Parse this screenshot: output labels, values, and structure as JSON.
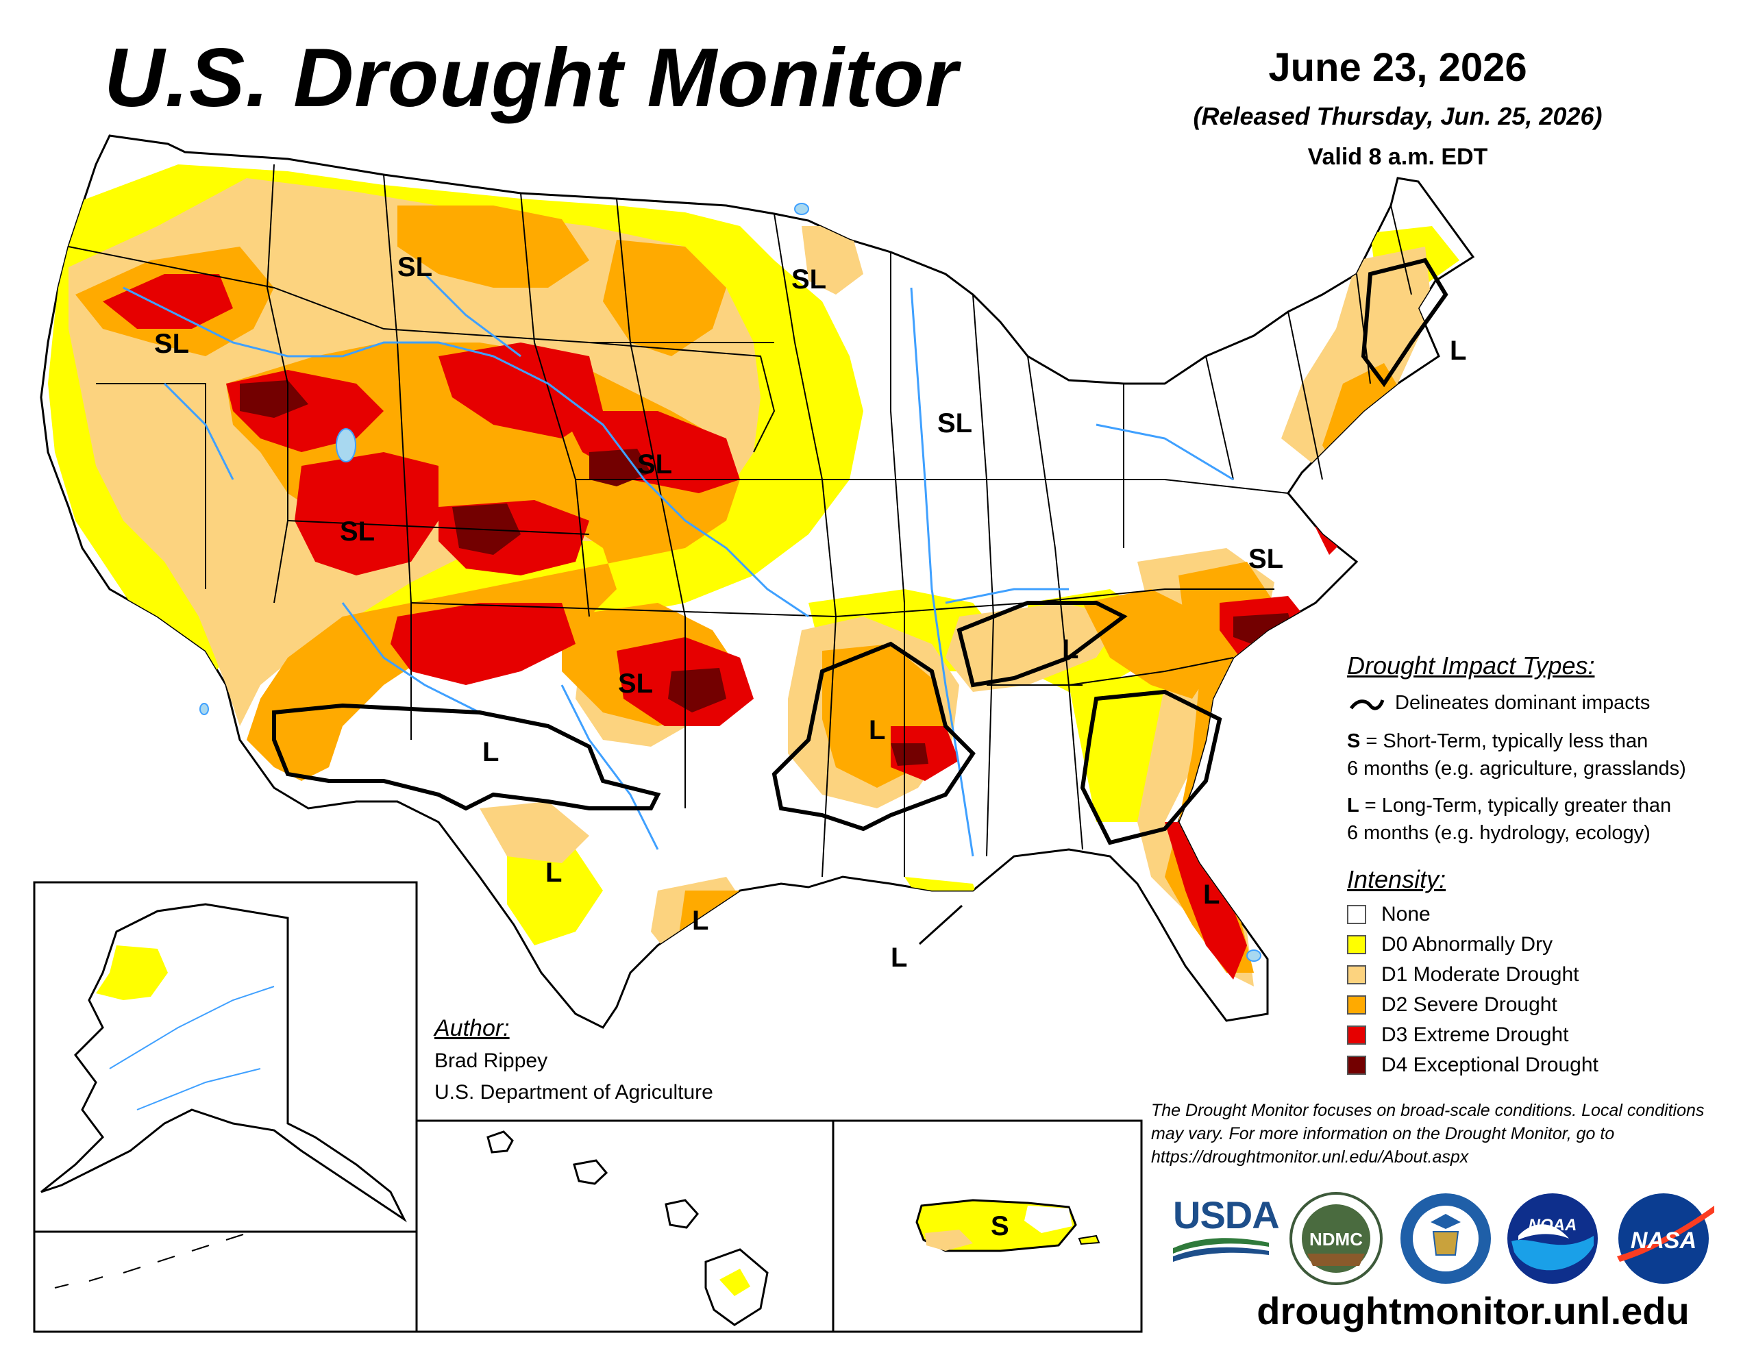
{
  "header": {
    "title": "U.S. Drought Monitor",
    "date": "June 23, 2026",
    "released": "(Released Thursday, Jun. 25, 2026)",
    "valid": "Valid 8 a.m. EDT"
  },
  "map_labels": [
    {
      "id": "sl-northwest",
      "text": "SL"
    },
    {
      "id": "sl-montana",
      "text": "SL"
    },
    {
      "id": "sl-minnesota",
      "text": "SL"
    },
    {
      "id": "sl-wisconsin",
      "text": "SL"
    },
    {
      "id": "sl-nebraska",
      "text": "SL"
    },
    {
      "id": "sl-utah",
      "text": "SL"
    },
    {
      "id": "sl-oklahoma",
      "text": "SL"
    },
    {
      "id": "sl-virginia",
      "text": "SL"
    },
    {
      "id": "l-new-england",
      "text": "L"
    },
    {
      "id": "l-new-mexico",
      "text": "L"
    },
    {
      "id": "l-arkansas",
      "text": "L"
    },
    {
      "id": "l-tennessee",
      "text": "L"
    },
    {
      "id": "l-west-texas",
      "text": "L"
    },
    {
      "id": "l-south-texas",
      "text": "L"
    },
    {
      "id": "l-louisiana",
      "text": "L"
    },
    {
      "id": "l-florida",
      "text": "L"
    },
    {
      "id": "s-puerto-rico",
      "text": "S"
    }
  ],
  "legend": {
    "impact_heading": "Drought Impact Types:",
    "delineates": "Delineates dominant impacts",
    "short_key": "S",
    "short_desc_1": "= Short-Term, typically less than",
    "short_desc_2": "6 months (e.g. agriculture, grasslands)",
    "long_key": "L",
    "long_desc_1": "= Long-Term, typically greater than",
    "long_desc_2": "6 months (e.g. hydrology, ecology)",
    "intensity_heading": "Intensity:",
    "categories": [
      {
        "label": "None",
        "color": "#ffffff"
      },
      {
        "label": "D0 Abnormally Dry",
        "color": "#ffff00"
      },
      {
        "label": "D1 Moderate Drought",
        "color": "#fcd37f"
      },
      {
        "label": "D2 Severe Drought",
        "color": "#ffaa00"
      },
      {
        "label": "D3 Extreme Drought",
        "color": "#e60000"
      },
      {
        "label": "D4 Exceptional Drought",
        "color": "#730000"
      }
    ]
  },
  "author": {
    "heading": "Author:",
    "name": "Brad Rippey",
    "org": "U.S. Department of Agriculture"
  },
  "note": "The Drought Monitor focuses on broad-scale conditions. Local conditions may vary. For more information on the Drought Monitor, go to https://droughtmonitor.unl.edu/About.aspx",
  "logos": {
    "usda": "USDA",
    "ndmc": "NDMC",
    "noaa": "NOAA",
    "nasa": "NASA"
  },
  "website": "droughtmonitor.unl.edu",
  "colors": {
    "river": "#3fa0ff",
    "lake": "#a8d8f0",
    "border": "#000000"
  }
}
